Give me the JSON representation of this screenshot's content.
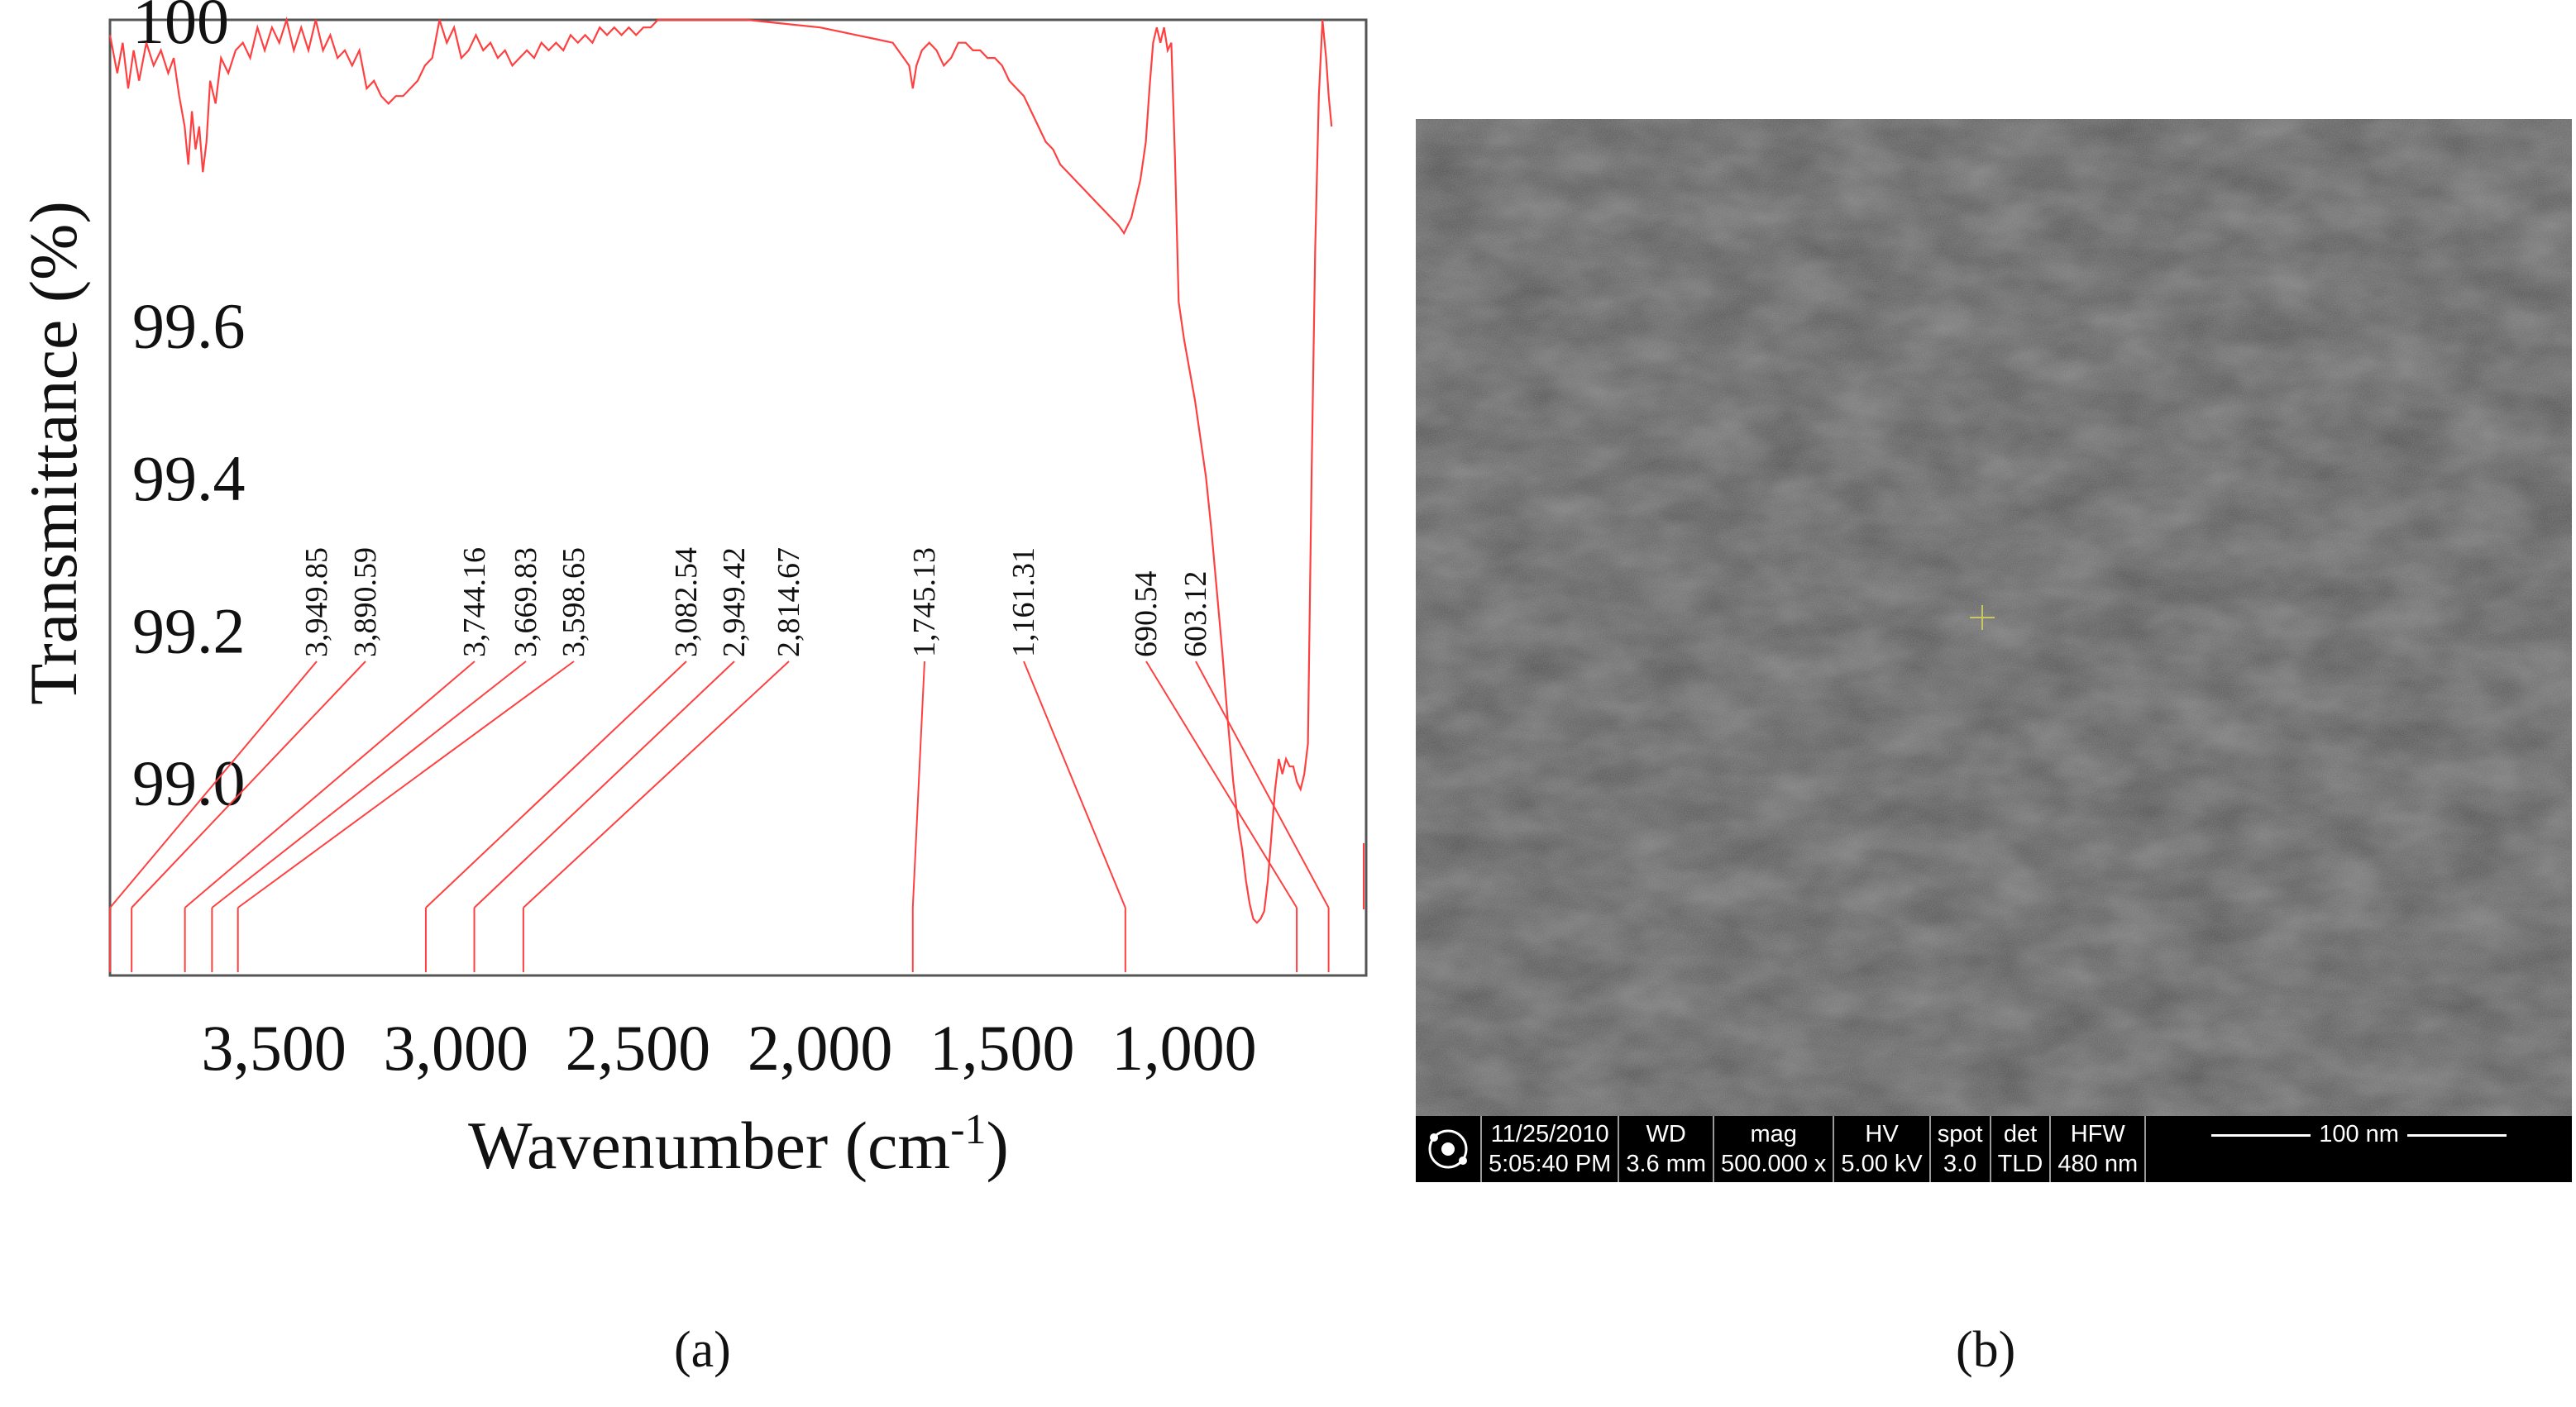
{
  "chart_data": {
    "type": "line",
    "xlabel_base": "Wavenumber (cm",
    "xlabel_sup": "-1",
    "xlabel_close": ")",
    "ylabel": "Transmittance (%)",
    "x_ticks": [
      3500,
      3000,
      2500,
      2000,
      1500,
      1000
    ],
    "x_tick_labels": [
      "3,500",
      "3,000",
      "2,500",
      "2,000",
      "1,500",
      "1,000"
    ],
    "y_ticks": [
      99.0,
      99.2,
      99.4,
      99.6,
      100
    ],
    "y_tick_labels": [
      "99.0",
      "99.2",
      "99.4",
      "99.6",
      "100"
    ],
    "x_range": [
      3950,
      500
    ],
    "y_range": [
      98.8,
      100
    ],
    "line_color": "#ff4040",
    "series": [
      {
        "points": [
          [
            3950,
            99.98
          ],
          [
            3930,
            99.93
          ],
          [
            3915,
            99.97
          ],
          [
            3900,
            99.91
          ],
          [
            3885,
            99.96
          ],
          [
            3870,
            99.92
          ],
          [
            3850,
            99.97
          ],
          [
            3830,
            99.94
          ],
          [
            3810,
            99.96
          ],
          [
            3790,
            99.93
          ],
          [
            3775,
            99.95
          ],
          [
            3760,
            99.9
          ],
          [
            3745,
            99.86
          ],
          [
            3735,
            99.81
          ],
          [
            3725,
            99.88
          ],
          [
            3715,
            99.83
          ],
          [
            3705,
            99.86
          ],
          [
            3695,
            99.8
          ],
          [
            3685,
            99.84
          ],
          [
            3675,
            99.92
          ],
          [
            3660,
            99.89
          ],
          [
            3645,
            99.95
          ],
          [
            3625,
            99.93
          ],
          [
            3605,
            99.96
          ],
          [
            3585,
            99.97
          ],
          [
            3565,
            99.95
          ],
          [
            3545,
            99.99
          ],
          [
            3525,
            99.96
          ],
          [
            3505,
            99.99
          ],
          [
            3485,
            99.97
          ],
          [
            3465,
            100.0
          ],
          [
            3445,
            99.96
          ],
          [
            3425,
            99.99
          ],
          [
            3405,
            99.96
          ],
          [
            3385,
            100.0
          ],
          [
            3365,
            99.96
          ],
          [
            3345,
            99.98
          ],
          [
            3325,
            99.95
          ],
          [
            3305,
            99.96
          ],
          [
            3285,
            99.94
          ],
          [
            3265,
            99.96
          ],
          [
            3245,
            99.91
          ],
          [
            3225,
            99.92
          ],
          [
            3205,
            99.9
          ],
          [
            3185,
            99.89
          ],
          [
            3165,
            99.9
          ],
          [
            3145,
            99.9
          ],
          [
            3125,
            99.91
          ],
          [
            3105,
            99.92
          ],
          [
            3085,
            99.94
          ],
          [
            3065,
            99.95
          ],
          [
            3045,
            100.0
          ],
          [
            3025,
            99.97
          ],
          [
            3005,
            99.99
          ],
          [
            2985,
            99.95
          ],
          [
            2965,
            99.96
          ],
          [
            2945,
            99.98
          ],
          [
            2925,
            99.96
          ],
          [
            2905,
            99.97
          ],
          [
            2885,
            99.95
          ],
          [
            2865,
            99.96
          ],
          [
            2845,
            99.94
          ],
          [
            2825,
            99.95
          ],
          [
            2805,
            99.96
          ],
          [
            2785,
            99.95
          ],
          [
            2765,
            99.97
          ],
          [
            2745,
            99.96
          ],
          [
            2725,
            99.97
          ],
          [
            2705,
            99.96
          ],
          [
            2685,
            99.98
          ],
          [
            2665,
            99.97
          ],
          [
            2645,
            99.98
          ],
          [
            2625,
            99.97
          ],
          [
            2605,
            99.99
          ],
          [
            2585,
            99.98
          ],
          [
            2565,
            99.99
          ],
          [
            2545,
            99.98
          ],
          [
            2525,
            99.99
          ],
          [
            2505,
            99.98
          ],
          [
            2485,
            99.99
          ],
          [
            2465,
            99.99
          ],
          [
            2445,
            100.0
          ],
          [
            2400,
            100.0
          ],
          [
            2300,
            100.0
          ],
          [
            2200,
            100.0
          ],
          [
            2100,
            99.995
          ],
          [
            2000,
            99.99
          ],
          [
            1900,
            99.98
          ],
          [
            1850,
            99.975
          ],
          [
            1800,
            99.97
          ],
          [
            1770,
            99.95
          ],
          [
            1755,
            99.94
          ],
          [
            1745,
            99.91
          ],
          [
            1735,
            99.94
          ],
          [
            1720,
            99.96
          ],
          [
            1700,
            99.97
          ],
          [
            1680,
            99.96
          ],
          [
            1660,
            99.94
          ],
          [
            1640,
            99.95
          ],
          [
            1620,
            99.97
          ],
          [
            1600,
            99.97
          ],
          [
            1580,
            99.96
          ],
          [
            1560,
            99.96
          ],
          [
            1540,
            99.95
          ],
          [
            1520,
            99.95
          ],
          [
            1500,
            99.94
          ],
          [
            1480,
            99.92
          ],
          [
            1460,
            99.91
          ],
          [
            1440,
            99.9
          ],
          [
            1420,
            99.88
          ],
          [
            1400,
            99.86
          ],
          [
            1380,
            99.84
          ],
          [
            1360,
            99.83
          ],
          [
            1340,
            99.81
          ],
          [
            1320,
            99.8
          ],
          [
            1300,
            99.79
          ],
          [
            1280,
            99.78
          ],
          [
            1260,
            99.77
          ],
          [
            1240,
            99.76
          ],
          [
            1220,
            99.75
          ],
          [
            1200,
            99.74
          ],
          [
            1180,
            99.73
          ],
          [
            1165,
            99.72
          ],
          [
            1155,
            99.73
          ],
          [
            1145,
            99.74
          ],
          [
            1135,
            99.76
          ],
          [
            1120,
            99.79
          ],
          [
            1105,
            99.84
          ],
          [
            1095,
            99.91
          ],
          [
            1085,
            99.97
          ],
          [
            1075,
            99.99
          ],
          [
            1065,
            99.97
          ],
          [
            1055,
            99.99
          ],
          [
            1045,
            99.96
          ],
          [
            1035,
            99.97
          ],
          [
            1025,
            99.82
          ],
          [
            1015,
            99.63
          ],
          [
            1000,
            99.58
          ],
          [
            985,
            99.54
          ],
          [
            970,
            99.5
          ],
          [
            955,
            99.45
          ],
          [
            940,
            99.4
          ],
          [
            925,
            99.33
          ],
          [
            910,
            99.25
          ],
          [
            895,
            99.17
          ],
          [
            880,
            99.08
          ],
          [
            865,
            99.0
          ],
          [
            850,
            98.94
          ],
          [
            840,
            98.91
          ],
          [
            830,
            98.87
          ],
          [
            820,
            98.84
          ],
          [
            810,
            98.82
          ],
          [
            800,
            98.815
          ],
          [
            790,
            98.82
          ],
          [
            780,
            98.83
          ],
          [
            770,
            98.87
          ],
          [
            760,
            98.93
          ],
          [
            750,
            98.99
          ],
          [
            740,
            99.03
          ],
          [
            730,
            99.01
          ],
          [
            720,
            99.03
          ],
          [
            710,
            99.02
          ],
          [
            700,
            99.02
          ],
          [
            690,
            99.0
          ],
          [
            680,
            98.99
          ],
          [
            670,
            99.01
          ],
          [
            660,
            99.05
          ],
          [
            650,
            99.4
          ],
          [
            640,
            99.7
          ],
          [
            630,
            99.9
          ],
          [
            620,
            100.0
          ],
          [
            610,
            99.95
          ],
          [
            603,
            99.9
          ],
          [
            595,
            99.86
          ]
        ]
      }
    ],
    "peaks": [
      {
        "label": "3,949.85",
        "value": 3949.85
      },
      {
        "label": "3,890.59",
        "value": 3890.59
      },
      {
        "label": "3,744.16",
        "value": 3744.16
      },
      {
        "label": "3,669.83",
        "value": 3669.83
      },
      {
        "label": "3,598.65",
        "value": 3598.65
      },
      {
        "label": "3,082.54",
        "value": 3082.54
      },
      {
        "label": "2,949.42",
        "value": 2949.42
      },
      {
        "label": "2,814.67",
        "value": 2814.67
      },
      {
        "label": "1,745.13",
        "value": 1745.13
      },
      {
        "label": "1,161.31",
        "value": 1161.31
      },
      {
        "label": "690.54",
        "value": 690.54
      },
      {
        "label": "603.12",
        "value": 603.12
      }
    ],
    "grid": false,
    "legend": "none"
  },
  "panels": {
    "a": "(a)",
    "b": "(b)"
  },
  "sem": {
    "date": "11/25/2010",
    "time": "5:05:40 PM",
    "wd_label": "WD",
    "wd_value": "3.6 mm",
    "mag_label": "mag",
    "mag_value": "500.000 x",
    "hv_label": "HV",
    "hv_value": "5.00 kV",
    "spot_label": "spot",
    "spot_value": "3.0",
    "det_label": "det",
    "det_value": "TLD",
    "hfw_label": "HFW",
    "hfw_value": "480 nm",
    "scale_label": "100 nm"
  }
}
